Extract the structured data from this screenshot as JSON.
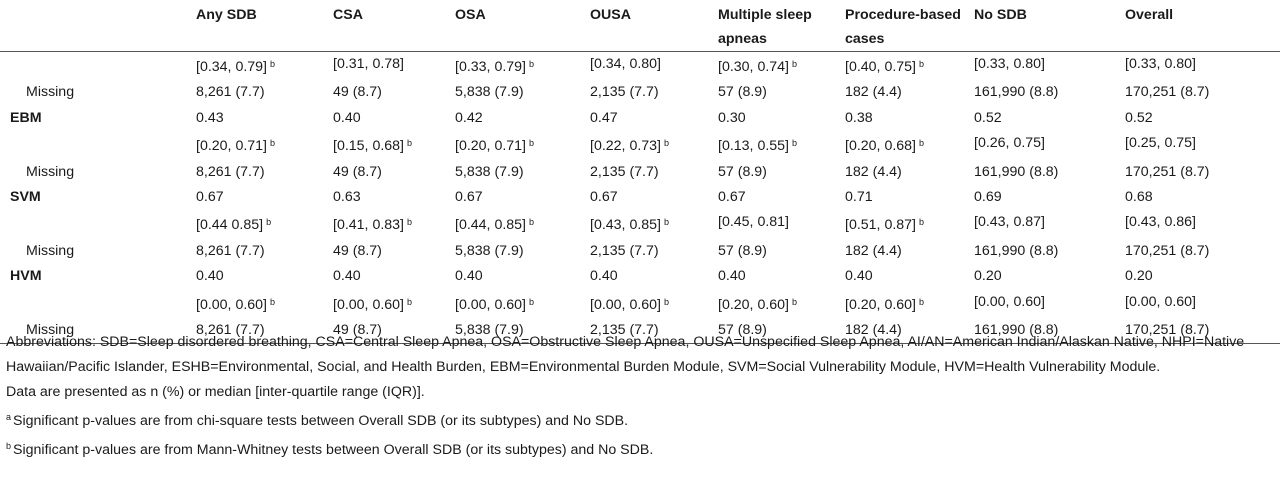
{
  "columns": [
    "",
    "Any SDB",
    "CSA",
    "OSA",
    "OUSA",
    "Multiple sleep apneas",
    "Procedure-based cases",
    "No SDB",
    "Overall"
  ],
  "rows": [
    {
      "label": "",
      "type": "ci",
      "cells": [
        {
          "text": "[0.34, 0.79]",
          "sup": "b"
        },
        {
          "text": "[0.31, 0.78]",
          "sup": ""
        },
        {
          "text": "[0.33, 0.79]",
          "sup": "b"
        },
        {
          "text": "[0.34, 0.80]",
          "sup": ""
        },
        {
          "text": "[0.30, 0.74]",
          "sup": "b"
        },
        {
          "text": "[0.40, 0.75]",
          "sup": "b"
        },
        {
          "text": "[0.33, 0.80]",
          "sup": ""
        },
        {
          "text": "[0.33, 0.80]",
          "sup": ""
        }
      ]
    },
    {
      "label": "Missing",
      "type": "missing",
      "cells": [
        {
          "text": "8,261 (7.7)",
          "sup": ""
        },
        {
          "text": "49 (8.7)",
          "sup": ""
        },
        {
          "text": "5,838 (7.9)",
          "sup": ""
        },
        {
          "text": "2,135 (7.7)",
          "sup": ""
        },
        {
          "text": "57 (8.9)",
          "sup": ""
        },
        {
          "text": "182 (4.4)",
          "sup": ""
        },
        {
          "text": "161,990 (8.8)",
          "sup": ""
        },
        {
          "text": "170,251 (8.7)",
          "sup": ""
        }
      ]
    },
    {
      "label": "EBM",
      "type": "header",
      "cells": [
        {
          "text": "0.43",
          "sup": ""
        },
        {
          "text": "0.40",
          "sup": ""
        },
        {
          "text": "0.42",
          "sup": ""
        },
        {
          "text": "0.47",
          "sup": ""
        },
        {
          "text": "0.30",
          "sup": ""
        },
        {
          "text": "0.38",
          "sup": ""
        },
        {
          "text": "0.52",
          "sup": ""
        },
        {
          "text": "0.52",
          "sup": ""
        }
      ]
    },
    {
      "label": "",
      "type": "ci",
      "cells": [
        {
          "text": "[0.20, 0.71]",
          "sup": "b"
        },
        {
          "text": "[0.15, 0.68]",
          "sup": "b"
        },
        {
          "text": "[0.20, 0.71]",
          "sup": "b"
        },
        {
          "text": "[0.22, 0.73]",
          "sup": "b"
        },
        {
          "text": "[0.13, 0.55]",
          "sup": "b"
        },
        {
          "text": "[0.20, 0.68]",
          "sup": "b"
        },
        {
          "text": "[0.26, 0.75]",
          "sup": ""
        },
        {
          "text": "[0.25, 0.75]",
          "sup": ""
        }
      ]
    },
    {
      "label": "Missing",
      "type": "missing",
      "cells": [
        {
          "text": "8,261 (7.7)",
          "sup": ""
        },
        {
          "text": "49 (8.7)",
          "sup": ""
        },
        {
          "text": "5,838 (7.9)",
          "sup": ""
        },
        {
          "text": "2,135 (7.7)",
          "sup": ""
        },
        {
          "text": "57 (8.9)",
          "sup": ""
        },
        {
          "text": "182 (4.4)",
          "sup": ""
        },
        {
          "text": "161,990 (8.8)",
          "sup": ""
        },
        {
          "text": "170,251 (8.7)",
          "sup": ""
        }
      ]
    },
    {
      "label": "SVM",
      "type": "header",
      "cells": [
        {
          "text": "0.67",
          "sup": ""
        },
        {
          "text": "0.63",
          "sup": ""
        },
        {
          "text": "0.67",
          "sup": ""
        },
        {
          "text": "0.67",
          "sup": ""
        },
        {
          "text": "0.67",
          "sup": ""
        },
        {
          "text": "0.71",
          "sup": ""
        },
        {
          "text": "0.69",
          "sup": ""
        },
        {
          "text": "0.68",
          "sup": ""
        }
      ]
    },
    {
      "label": "",
      "type": "ci",
      "cells": [
        {
          "text": "[0.44 0.85]",
          "sup": "b"
        },
        {
          "text": "[0.41, 0.83]",
          "sup": "b"
        },
        {
          "text": "[0.44, 0.85]",
          "sup": "b"
        },
        {
          "text": "[0.43, 0.85]",
          "sup": "b"
        },
        {
          "text": "[0.45, 0.81]",
          "sup": ""
        },
        {
          "text": "[0.51, 0.87]",
          "sup": "b"
        },
        {
          "text": "[0.43, 0.87]",
          "sup": ""
        },
        {
          "text": "[0.43, 0.86]",
          "sup": ""
        }
      ]
    },
    {
      "label": "Missing",
      "type": "missing",
      "cells": [
        {
          "text": "8,261 (7.7)",
          "sup": ""
        },
        {
          "text": "49 (8.7)",
          "sup": ""
        },
        {
          "text": "5,838 (7.9)",
          "sup": ""
        },
        {
          "text": "2,135 (7.7)",
          "sup": ""
        },
        {
          "text": "57 (8.9)",
          "sup": ""
        },
        {
          "text": "182 (4.4)",
          "sup": ""
        },
        {
          "text": "161,990 (8.8)",
          "sup": ""
        },
        {
          "text": "170,251 (8.7)",
          "sup": ""
        }
      ]
    },
    {
      "label": "HVM",
      "type": "header",
      "cells": [
        {
          "text": "0.40",
          "sup": ""
        },
        {
          "text": "0.40",
          "sup": ""
        },
        {
          "text": "0.40",
          "sup": ""
        },
        {
          "text": "0.40",
          "sup": ""
        },
        {
          "text": "0.40",
          "sup": ""
        },
        {
          "text": "0.40",
          "sup": ""
        },
        {
          "text": "0.20",
          "sup": ""
        },
        {
          "text": "0.20",
          "sup": ""
        }
      ]
    },
    {
      "label": "",
      "type": "ci",
      "cells": [
        {
          "text": "[0.00, 0.60]",
          "sup": "b"
        },
        {
          "text": "[0.00, 0.60]",
          "sup": "b"
        },
        {
          "text": "[0.00, 0.60]",
          "sup": "b"
        },
        {
          "text": "[0.00, 0.60]",
          "sup": "b"
        },
        {
          "text": "[0.20, 0.60]",
          "sup": "b"
        },
        {
          "text": "[0.20, 0.60]",
          "sup": "b"
        },
        {
          "text": "[0.00, 0.60]",
          "sup": ""
        },
        {
          "text": "[0.00, 0.60]",
          "sup": ""
        }
      ]
    },
    {
      "label": "Missing",
      "type": "missing",
      "cells": [
        {
          "text": "8,261 (7.7)",
          "sup": ""
        },
        {
          "text": "49 (8.7)",
          "sup": ""
        },
        {
          "text": "5,838 (7.9)",
          "sup": ""
        },
        {
          "text": "2,135 (7.7)",
          "sup": ""
        },
        {
          "text": "57 (8.9)",
          "sup": ""
        },
        {
          "text": "182 (4.4)",
          "sup": ""
        },
        {
          "text": "161,990 (8.8)",
          "sup": ""
        },
        {
          "text": "170,251 (8.7)",
          "sup": ""
        }
      ]
    }
  ],
  "notes": {
    "abbreviations": "Abbreviations: SDB=Sleep disordered breathing, CSA=Central Sleep Apnea, OSA=Obstructive Sleep Apnea, OUSA=Unspecified Sleep Apnea, AI/AN=American Indian/Alaskan Native, NHPI=Native Hawaiian/Pacific Islander, ESHB=Environmental, Social, and Health Burden, EBM=Environmental Burden Module, SVM=Social Vulnerability Module, HVM=Health Vulnerability Module.",
    "presentation": "Data are presented as n (%) or median [inter-quartile range (IQR)].",
    "footnote_a_mark": "a",
    "footnote_a": "Significant p-values are from chi-square tests between Overall SDB (or its subtypes) and No SDB.",
    "footnote_b_mark": "b",
    "footnote_b": "Significant p-values are from Mann-Whitney tests between Overall SDB (or its subtypes) and No SDB."
  }
}
